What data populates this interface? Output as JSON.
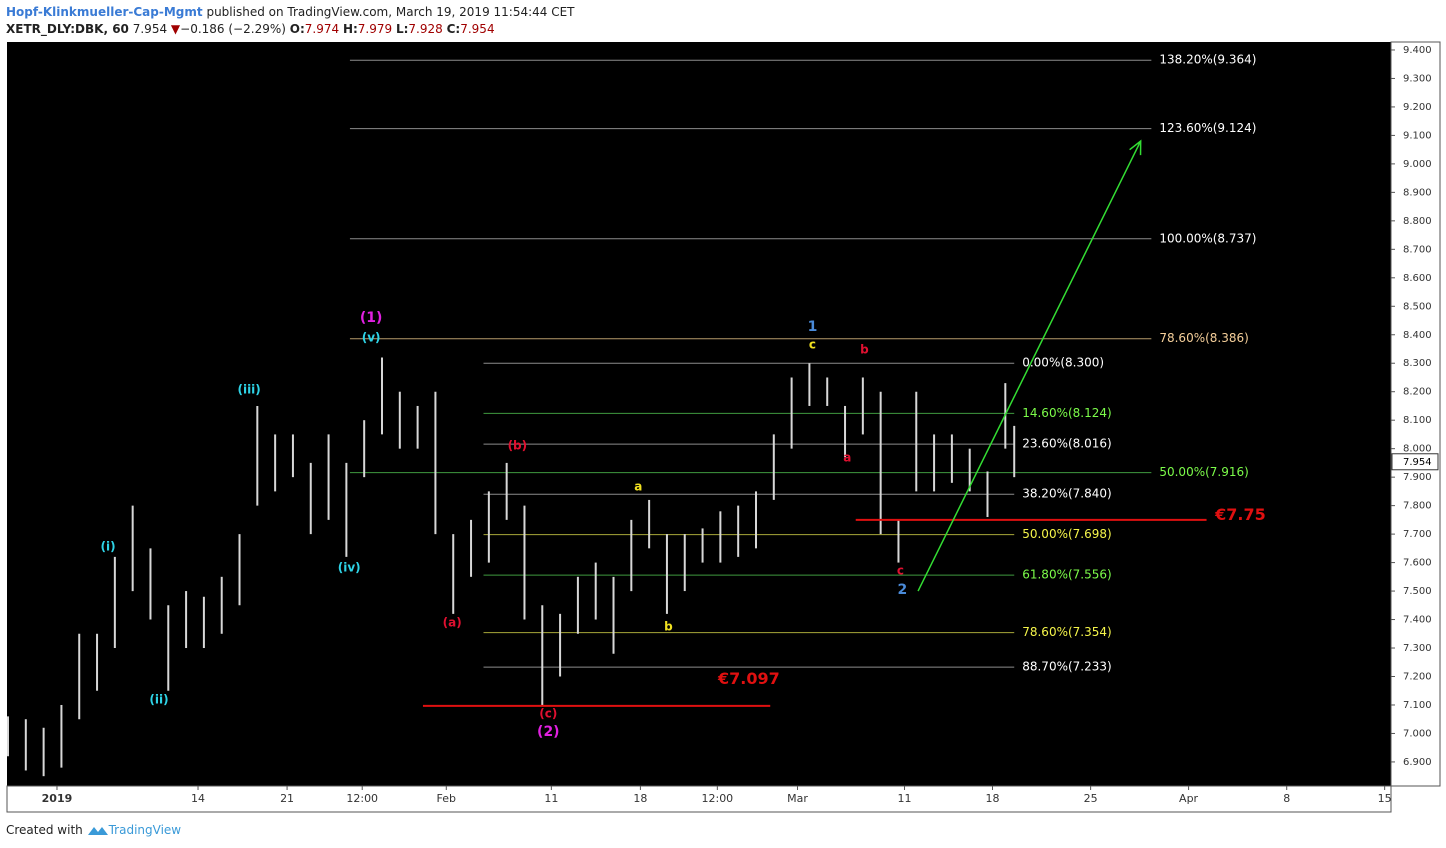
{
  "header": {
    "publisher": "Hopf-Klinkmueller-Cap-Mgmt",
    "published": "published on TradingView.com, March 19, 2019 11:54:44 CET",
    "symbol": "XETR_DLY:DBK, 60",
    "last": "7.954",
    "arrow": "▼",
    "change": "−0.186 (−2.29%)",
    "o_key": "O:",
    "o": "7.974",
    "h_key": "H:",
    "h": "7.979",
    "l_key": "L:",
    "l": "7.928",
    "c_key": "C:",
    "c": "7.954"
  },
  "footer": {
    "created_with": "Created with",
    "brand": "TradingView"
  },
  "chart_data": {
    "type": "ohlc",
    "xlim": [
      0,
      77.6
    ],
    "ylim": [
      6.819,
      9.428
    ],
    "xticks": [
      {
        "value": 2.75,
        "label": "2019"
      },
      {
        "value": 10.67,
        "label": "14"
      },
      {
        "value": 15.67,
        "label": "21"
      },
      {
        "value": 19.89,
        "label": "12:00"
      },
      {
        "value": 24.61,
        "label": "Feb"
      },
      {
        "value": 30.51,
        "label": "11"
      },
      {
        "value": 35.51,
        "label": "18"
      },
      {
        "value": 39.83,
        "label": "12:00"
      },
      {
        "value": 44.33,
        "label": "Mar"
      },
      {
        "value": 50.34,
        "label": "11"
      },
      {
        "value": 55.28,
        "label": "18"
      },
      {
        "value": 60.79,
        "label": "25"
      },
      {
        "value": 66.29,
        "label": "Apr"
      },
      {
        "value": 71.8,
        "label": "8"
      },
      {
        "value": 77.3,
        "label": "15"
      }
    ],
    "yticks": [
      {
        "value": 6.9,
        "label": "6.900"
      },
      {
        "value": 7.0,
        "label": "7.000"
      },
      {
        "value": 7.1,
        "label": "7.100"
      },
      {
        "value": 7.2,
        "label": "7.200"
      },
      {
        "value": 7.3,
        "label": "7.300"
      },
      {
        "value": 7.4,
        "label": "7.400"
      },
      {
        "value": 7.5,
        "label": "7.500"
      },
      {
        "value": 7.6,
        "label": "7.600"
      },
      {
        "value": 7.7,
        "label": "7.700"
      },
      {
        "value": 7.8,
        "label": "7.800"
      },
      {
        "value": 7.9,
        "label": "7.900"
      },
      {
        "value": 8.0,
        "label": "8.000"
      },
      {
        "value": 8.1,
        "label": "8.100"
      },
      {
        "value": 8.2,
        "label": "8.200"
      },
      {
        "value": 8.3,
        "label": "8.300"
      },
      {
        "value": 8.4,
        "label": "8.400"
      },
      {
        "value": 8.5,
        "label": "8.500"
      },
      {
        "value": 8.6,
        "label": "8.600"
      },
      {
        "value": 8.7,
        "label": "8.700"
      },
      {
        "value": 8.8,
        "label": "8.800"
      },
      {
        "value": 8.9,
        "label": "8.900"
      },
      {
        "value": 9.0,
        "label": "9.000"
      },
      {
        "value": 9.1,
        "label": "9.100"
      },
      {
        "value": 9.2,
        "label": "9.200"
      },
      {
        "value": 9.3,
        "label": "9.300"
      },
      {
        "value": 9.4,
        "label": "9.400"
      }
    ],
    "last_price": {
      "value": 7.954,
      "label": "7.954"
    },
    "bar_color": "#d8d8d8",
    "bars": {
      "x": [
        0,
        1,
        2,
        3,
        4,
        5,
        6,
        7,
        8,
        9,
        10,
        11,
        12,
        13,
        14,
        15,
        16,
        17,
        18,
        19,
        20,
        21,
        22,
        23,
        24,
        25,
        26,
        27,
        28,
        29,
        30,
        31,
        32,
        33,
        34,
        35,
        36,
        37,
        38,
        39,
        40,
        41,
        42,
        43,
        44,
        45,
        46,
        47,
        48,
        49,
        50,
        51,
        52,
        53,
        54,
        55,
        56,
        56.5
      ],
      "high": [
        7.06,
        7.05,
        7.02,
        7.1,
        7.35,
        7.35,
        7.62,
        7.8,
        7.65,
        7.45,
        7.5,
        7.48,
        7.55,
        7.7,
        8.15,
        8.05,
        8.05,
        7.95,
        8.05,
        7.95,
        8.1,
        8.32,
        8.2,
        8.15,
        8.2,
        7.7,
        7.75,
        7.85,
        7.95,
        7.8,
        7.45,
        7.42,
        7.55,
        7.6,
        7.55,
        7.75,
        7.82,
        7.7,
        7.7,
        7.72,
        7.78,
        7.8,
        7.85,
        8.05,
        8.25,
        8.3,
        8.25,
        8.15,
        8.25,
        8.2,
        7.75,
        8.2,
        8.05,
        8.05,
        8.0,
        7.92,
        8.23,
        8.08
      ],
      "low": [
        6.92,
        6.87,
        6.85,
        6.88,
        7.05,
        7.15,
        7.3,
        7.5,
        7.4,
        7.15,
        7.3,
        7.3,
        7.35,
        7.45,
        7.8,
        7.85,
        7.9,
        7.7,
        7.75,
        7.62,
        7.9,
        8.05,
        8.0,
        8.0,
        7.7,
        7.42,
        7.55,
        7.6,
        7.75,
        7.4,
        7.1,
        7.2,
        7.35,
        7.4,
        7.28,
        7.5,
        7.65,
        7.42,
        7.5,
        7.6,
        7.6,
        7.62,
        7.65,
        7.82,
        8.0,
        8.15,
        8.15,
        7.97,
        8.05,
        7.7,
        7.6,
        7.85,
        7.85,
        7.88,
        7.85,
        7.76,
        8.0,
        7.9
      ]
    },
    "fib_levels": [
      {
        "label": "138.20%(9.364)",
        "value": 9.364,
        "x": [
          19.2,
          64.2
        ],
        "color": "#8c8c8c",
        "text_color": "#ffffff"
      },
      {
        "label": "123.60%(9.124)",
        "value": 9.124,
        "x": [
          19.2,
          64.2
        ],
        "color": "#8c8c8c",
        "text_color": "#ffffff"
      },
      {
        "label": "100.00%(8.737)",
        "value": 8.737,
        "x": [
          19.2,
          64.2
        ],
        "color": "#8c8c8c",
        "text_color": "#ffffff"
      },
      {
        "label": "78.60%(8.386)",
        "value": 8.386,
        "x": [
          19.2,
          64.2
        ],
        "color": "#b59a6a",
        "text_color": "#f5cf9a"
      },
      {
        "label": "50.00%(7.916)",
        "value": 7.916,
        "x": [
          19.2,
          64.2
        ],
        "color": "#3f9a3f",
        "text_color": "#7cfc4a"
      },
      {
        "label": "0.00%(8.300)",
        "value": 8.3,
        "x": [
          26.7,
          56.5
        ],
        "color": "#8c8c8c",
        "text_color": "#ffffff"
      },
      {
        "label": "14.60%(8.124)",
        "value": 8.124,
        "x": [
          26.7,
          56.5
        ],
        "color": "#3f9a3f",
        "text_color": "#7cfc4a"
      },
      {
        "label": "23.60%(8.016)",
        "value": 8.016,
        "x": [
          26.7,
          56.5
        ],
        "color": "#8c8c8c",
        "text_color": "#ffffff"
      },
      {
        "label": "38.20%(7.840)",
        "value": 7.84,
        "x": [
          26.7,
          56.5
        ],
        "color": "#8c8c8c",
        "text_color": "#ffffff"
      },
      {
        "label": "50.00%(7.698)",
        "value": 7.698,
        "x": [
          26.7,
          56.5
        ],
        "color": "#a8a83a",
        "text_color": "#f5f54a"
      },
      {
        "label": "61.80%(7.556)",
        "value": 7.556,
        "x": [
          26.7,
          56.5
        ],
        "color": "#3f9a3f",
        "text_color": "#7cfc4a"
      },
      {
        "label": "78.60%(7.354)",
        "value": 7.354,
        "x": [
          26.7,
          56.5
        ],
        "color": "#a8a83a",
        "text_color": "#f5f54a"
      },
      {
        "label": "88.70%(7.233)",
        "value": 7.233,
        "x": [
          26.7,
          56.5
        ],
        "color": "#8c8c8c",
        "text_color": "#ffffff"
      }
    ],
    "support_lines": [
      {
        "label": "€7.097",
        "value": 7.097,
        "x": [
          23.3,
          42.8
        ],
        "label_x": 41.6,
        "label_y": 7.19,
        "color": "#e01010"
      },
      {
        "label": "€7.75",
        "value": 7.75,
        "x": [
          47.6,
          67.3
        ],
        "label_x": 69.2,
        "label_y": 7.765,
        "color": "#e01010"
      }
    ],
    "arrow": {
      "x": [
        51.1,
        63.6
      ],
      "y": [
        7.5,
        9.08
      ],
      "color": "#33dd33"
    },
    "wave_labels": [
      {
        "text": "(i)",
        "x": 5.62,
        "y": 7.655,
        "color": "#2ed3e6"
      },
      {
        "text": "(ii)",
        "x": 8.48,
        "y": 7.118,
        "color": "#2ed3e6"
      },
      {
        "text": "(iii)",
        "x": 13.54,
        "y": 8.206,
        "color": "#2ed3e6"
      },
      {
        "text": "(iv)",
        "x": 19.16,
        "y": 7.581,
        "color": "#2ed3e6"
      },
      {
        "text": "(v)",
        "x": 20.39,
        "y": 8.389,
        "color": "#2ed3e6"
      },
      {
        "text": "(1)",
        "x": 20.39,
        "y": 8.459,
        "color": "#e020e0"
      },
      {
        "text": "(a)",
        "x": 24.94,
        "y": 7.388,
        "color": "#e01030"
      },
      {
        "text": "(b)",
        "x": 28.6,
        "y": 8.01,
        "color": "#e01030"
      },
      {
        "text": "(c)",
        "x": 30.34,
        "y": 7.068,
        "color": "#e01030"
      },
      {
        "text": "(2)",
        "x": 30.34,
        "y": 7.005,
        "color": "#e020e0"
      },
      {
        "text": "a",
        "x": 35.39,
        "y": 7.866,
        "color": "#f0e020"
      },
      {
        "text": "b",
        "x": 37.08,
        "y": 7.374,
        "color": "#f0e020"
      },
      {
        "text": "1",
        "x": 45.17,
        "y": 8.427,
        "color": "#4a8ad8"
      },
      {
        "text": "c",
        "x": 45.17,
        "y": 8.364,
        "color": "#f0e020"
      },
      {
        "text": "b",
        "x": 48.09,
        "y": 8.347,
        "color": "#e01030"
      },
      {
        "text": "a",
        "x": 47.13,
        "y": 7.967,
        "color": "#e01030"
      },
      {
        "text": "c",
        "x": 50.11,
        "y": 7.571,
        "color": "#e01030"
      },
      {
        "text": "2",
        "x": 50.22,
        "y": 7.504,
        "color": "#4a8ad8"
      }
    ]
  }
}
